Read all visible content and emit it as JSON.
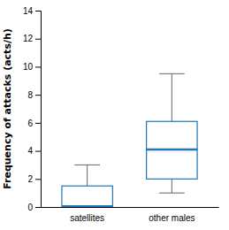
{
  "chart_data": {
    "type": "box",
    "categories": [
      "satellites",
      "other males"
    ],
    "boxes": [
      {
        "whislo": 0.0,
        "q1": 0.0,
        "med": 0.05,
        "q3": 1.5,
        "whishi": 3.0
      },
      {
        "whislo": 1.0,
        "q1": 2.0,
        "med": 4.1,
        "q3": 6.1,
        "whishi": 9.5
      }
    ],
    "ylim": [
      0,
      14
    ],
    "yticks": [
      0,
      2,
      4,
      6,
      8,
      10,
      12,
      14
    ],
    "ylabel": "Frequency of attacks (acts/h)"
  }
}
